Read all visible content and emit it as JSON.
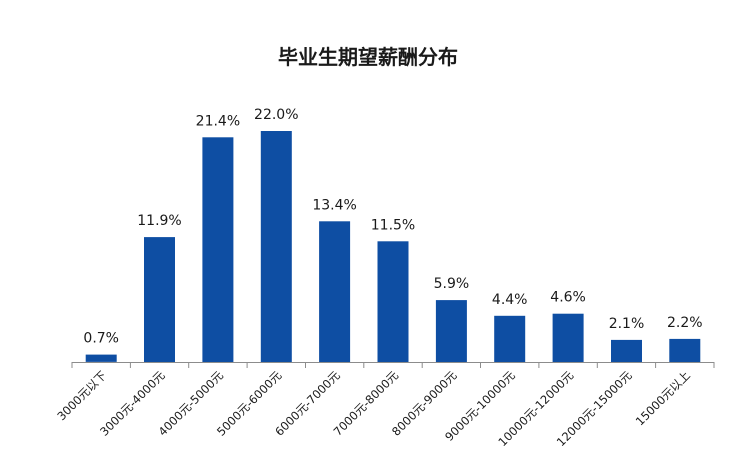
{
  "chart_data": {
    "type": "bar",
    "title": "毕业生期望薪酬分布",
    "xlabel": "",
    "ylabel": "",
    "ylim": [
      0,
      24
    ],
    "grid": false,
    "legend": "none",
    "unit": "%",
    "categories": [
      "3000元以下",
      "3000元-4000元",
      "4000元-5000元",
      "5000元-6000元",
      "6000元-7000元",
      "7000元-8000元",
      "8000元-9000元",
      "9000元-10000元",
      "10000元-12000元",
      "12000元-15000元",
      "15000元以上"
    ],
    "values": [
      0.7,
      11.9,
      21.4,
      22.0,
      13.4,
      11.5,
      5.9,
      4.4,
      4.6,
      2.1,
      2.2
    ],
    "value_labels": [
      "0.7%",
      "11.9%",
      "21.4%",
      "22.0%",
      "13.4%",
      "11.5%",
      "5.9%",
      "4.4%",
      "4.6%",
      "2.1%",
      "2.2%"
    ],
    "bar_color": "#0e4ea3"
  }
}
